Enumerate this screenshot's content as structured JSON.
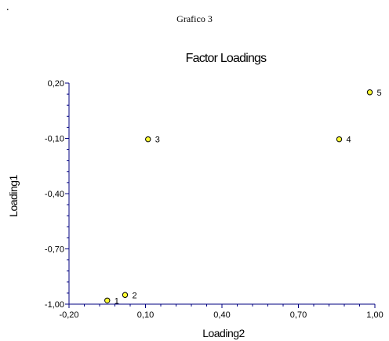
{
  "page_mark": ".",
  "caption": "Grafico 3",
  "chart_data": {
    "type": "scatter",
    "title": "Factor Loadings",
    "xlabel": "Loading2",
    "ylabel": "Loading1",
    "xlim": [
      -0.2,
      1.0
    ],
    "ylim": [
      -1.0,
      0.2
    ],
    "x_ticks": [
      -0.2,
      0.1,
      0.4,
      0.7,
      1.0
    ],
    "x_tick_labels": [
      "-0,20",
      "0,10",
      "0,40",
      "0,70",
      "1,00"
    ],
    "y_ticks": [
      0.2,
      -0.1,
      -0.4,
      -0.7,
      -1.0
    ],
    "y_tick_labels": [
      "0,20",
      "-0,10",
      "-0,40",
      "-0,70",
      "-1,00"
    ],
    "grid": false,
    "legend": "none",
    "marker_color": "#FFFF33",
    "axis_color": "#000080",
    "points": [
      {
        "label": "1",
        "x": -0.05,
        "y": -0.98
      },
      {
        "label": "2",
        "x": 0.02,
        "y": -0.95
      },
      {
        "label": "3",
        "x": 0.11,
        "y": -0.105
      },
      {
        "label": "4",
        "x": 0.86,
        "y": -0.105
      },
      {
        "label": "5",
        "x": 0.98,
        "y": 0.15
      }
    ]
  }
}
